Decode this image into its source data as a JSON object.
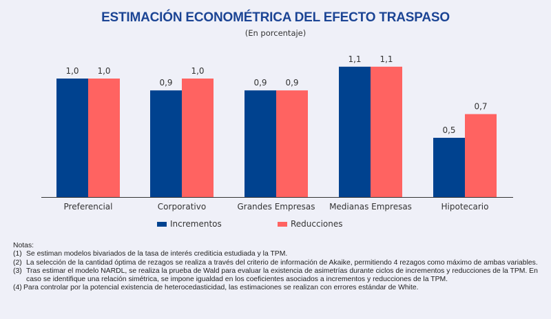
{
  "chart_data": {
    "type": "bar",
    "title": "ESTIMACIÓN ECONOMÉTRICA DEL EFECTO TRASPASO",
    "subtitle": "(En porcentaje)",
    "xlabel": "",
    "ylabel": "",
    "ylim": [
      0,
      1.2
    ],
    "grid": false,
    "legend_position": "bottom",
    "categories": [
      "Preferencial",
      "Corporativo",
      "Grandes Empresas",
      "Medianas Empresas",
      "Hipotecario"
    ],
    "series": [
      {
        "name": "Incrementos",
        "color": "#00428f",
        "values": [
          1.0,
          0.9,
          0.9,
          1.1,
          0.5
        ],
        "labels": [
          "1,0",
          "0,9",
          "0,9",
          "1,1",
          "0,5"
        ]
      },
      {
        "name": "Reducciones",
        "color": "#ff6361",
        "values": [
          1.0,
          1.0,
          0.9,
          1.1,
          0.7
        ],
        "labels": [
          "1,0",
          "1,0",
          "0,9",
          "1,1",
          "0,7"
        ]
      }
    ]
  },
  "notes": {
    "heading": "Notas:",
    "items": [
      {
        "num": "(1)",
        "text": "Se estiman modelos bivariados de la tasa de interés crediticia estudiada y la TPM."
      },
      {
        "num": "(2)",
        "text": "La selección de la cantidad óptima de rezagos se realiza a través del criterio de información de Akaike, permitiendo 4 rezagos como máximo de ambas variables."
      },
      {
        "num": "(3)",
        "text": "Tras estimar el modelo NARDL, se realiza la prueba de Wald para evaluar la existencia de asimetrías durante ciclos de incrementos y reducciones de la TPM. En caso se identifique una relación simétrica, se impone igualdad en los coeficientes asociados a incrementos y reducciones de la TPM."
      },
      {
        "num": "(4)",
        "text": "Para controlar por la potencial existencia de heterocedasticidad, las estimaciones se realizan con errores estándar de White."
      }
    ]
  }
}
